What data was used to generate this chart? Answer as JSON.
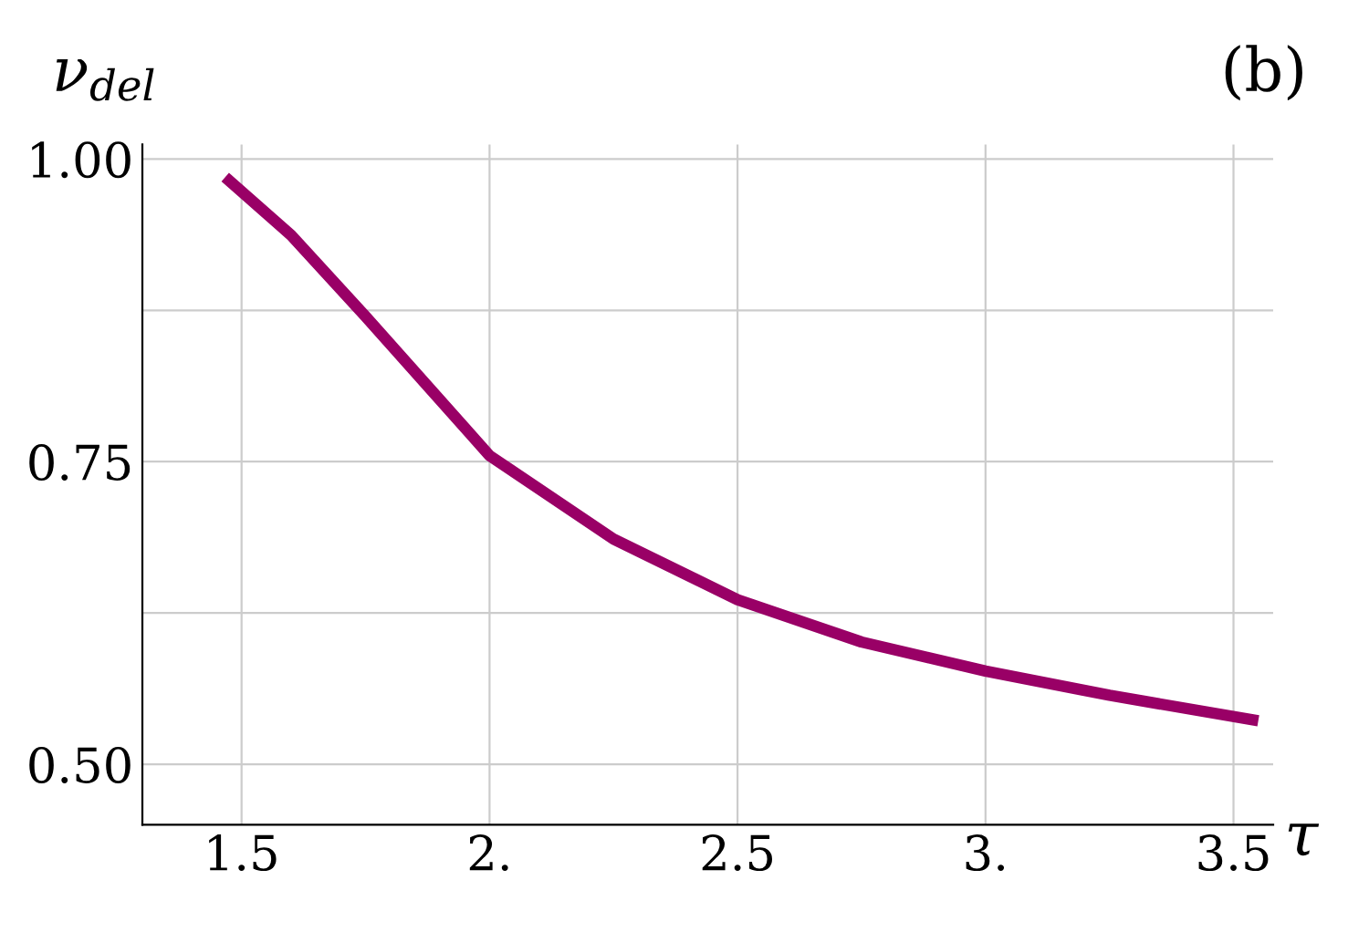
{
  "chart_data": {
    "type": "line",
    "title": "(b)",
    "xlabel": "τ",
    "ylabel": "ν$_{del}$",
    "x": [
      1.467,
      1.6,
      1.75,
      2.0,
      2.25,
      2.5,
      2.75,
      3.0,
      3.25,
      3.55
    ],
    "series": [
      {
        "color": "#990066",
        "values": [
          0.985,
          0.937,
          0.87,
          0.755,
          0.686,
          0.636,
          0.601,
          0.577,
          0.557,
          0.536
        ]
      }
    ],
    "xlim": [
      1.3,
      3.58
    ],
    "ylim": [
      0.45,
      1.012
    ],
    "xticks": [
      1.5,
      {
        "value": 2,
        "label": "2."
      },
      2.5,
      {
        "value": 3,
        "label": "3."
      },
      3.5
    ],
    "yticks": [
      {
        "value": 0.5,
        "label": "0.50"
      },
      {
        "value": 0.625,
        "label": null
      },
      {
        "value": 0.75,
        "label": "0.75"
      },
      {
        "value": 0.875,
        "label": null
      },
      {
        "value": 1.0,
        "label": "1.00"
      }
    ],
    "grid": true,
    "legend": false,
    "marker": "none",
    "line_style": "solid"
  }
}
